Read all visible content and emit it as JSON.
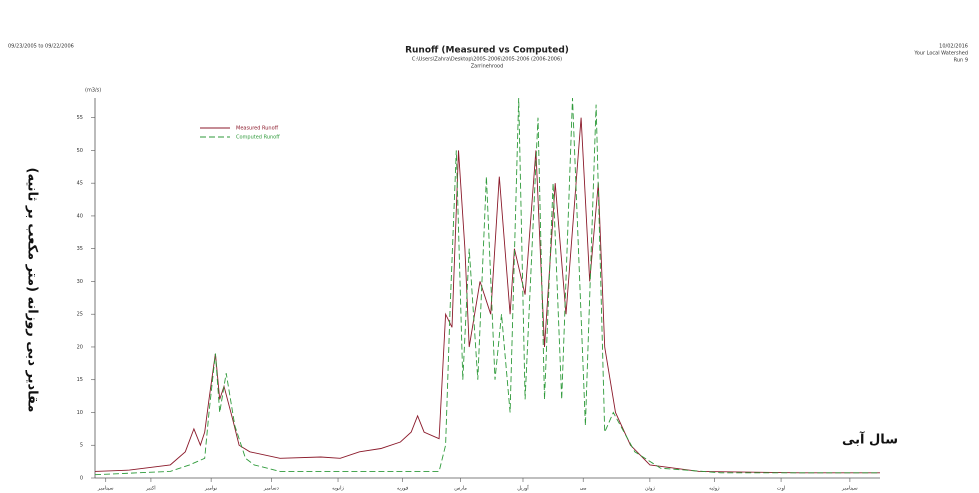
{
  "chart_data": {
    "type": "line",
    "title": "Runoff (Measured vs Computed)",
    "subtitle": "C:\\Users\\Zahra\\Desktop\\2005-2006\\2005-2006 (2006-2006)",
    "subtitle2": "Zarrinehrood",
    "date_range": "09/23/2005 to 09/22/2006",
    "run_date": "10/02/2016",
    "watershed": "Your Local Watershed",
    "run": "Run 9",
    "y_unit": "(m3/s)",
    "ylabel": "مقادیر دبی روزانه (متر مکعب بر ثانیه)",
    "xlabel": "سال آبی",
    "xlim": [
      0,
      365
    ],
    "xticks": [
      {
        "value": 5,
        "label": "سپتامبر"
      },
      {
        "value": 26,
        "label": "اکتبر"
      },
      {
        "value": 54,
        "label": "نوامبر"
      },
      {
        "value": 82,
        "label": "دسامبر"
      },
      {
        "value": 113,
        "label": "ژانویه"
      },
      {
        "value": 143,
        "label": "فوریه"
      },
      {
        "value": 170,
        "label": "مارس"
      },
      {
        "value": 199,
        "label": "آوریل"
      },
      {
        "value": 227,
        "label": "می"
      },
      {
        "value": 258,
        "label": "ژوئن"
      },
      {
        "value": 288,
        "label": "ژوئیه"
      },
      {
        "value": 319,
        "label": "اوت"
      },
      {
        "value": 351,
        "label": "سپتامبر"
      }
    ],
    "ylim": [
      0,
      58
    ],
    "yticks": [
      0,
      5,
      10,
      15,
      20,
      25,
      30,
      35,
      40,
      45,
      50,
      55
    ],
    "legend": "upper-left",
    "series": [
      {
        "name": "Measured Runoff",
        "color": "#8b1a2b",
        "dash": false,
        "x": [
          0,
          16,
          35,
          42,
          46,
          49,
          51,
          53,
          56,
          58,
          60,
          64,
          67,
          72,
          86,
          105,
          114,
          123,
          133,
          142,
          147,
          150,
          153,
          160,
          163,
          166,
          169,
          172,
          174,
          179,
          184,
          188,
          193,
          195,
          200,
          205,
          209,
          214,
          219,
          226,
          230,
          234,
          237,
          242,
          249,
          258,
          281,
          328,
          365
        ],
        "values": [
          1,
          1.2,
          2,
          4,
          7.5,
          5,
          7,
          12,
          19,
          12,
          14,
          9,
          5,
          4,
          3,
          3.2,
          3,
          4,
          4.5,
          5.5,
          7,
          9.5,
          7,
          6,
          25,
          23,
          50,
          35,
          20,
          30,
          25,
          46,
          25,
          35,
          28,
          50,
          20,
          45,
          25,
          55,
          30,
          45,
          20,
          10,
          5,
          2,
          1,
          0.8,
          0.8
        ]
      },
      {
        "name": "Computed Runoff",
        "color": "#2e9a3a",
        "dash": true,
        "x": [
          0,
          35,
          44,
          51,
          53,
          56,
          58,
          61,
          65,
          70,
          74,
          86,
          160,
          163,
          165,
          168,
          171,
          174,
          178,
          182,
          186,
          189,
          193,
          197,
          200,
          206,
          209,
          213,
          217,
          222,
          228,
          233,
          237,
          241,
          251,
          263,
          291,
          365
        ],
        "values": [
          0.5,
          1,
          2,
          3,
          10,
          19,
          10,
          16,
          8,
          3,
          2,
          1,
          1,
          5,
          25,
          50,
          15,
          35,
          15,
          46,
          15,
          25,
          10,
          58,
          12,
          55,
          12,
          45,
          12,
          58,
          8,
          57,
          7,
          10,
          4,
          1.5,
          0.8,
          0.8
        ]
      }
    ]
  }
}
